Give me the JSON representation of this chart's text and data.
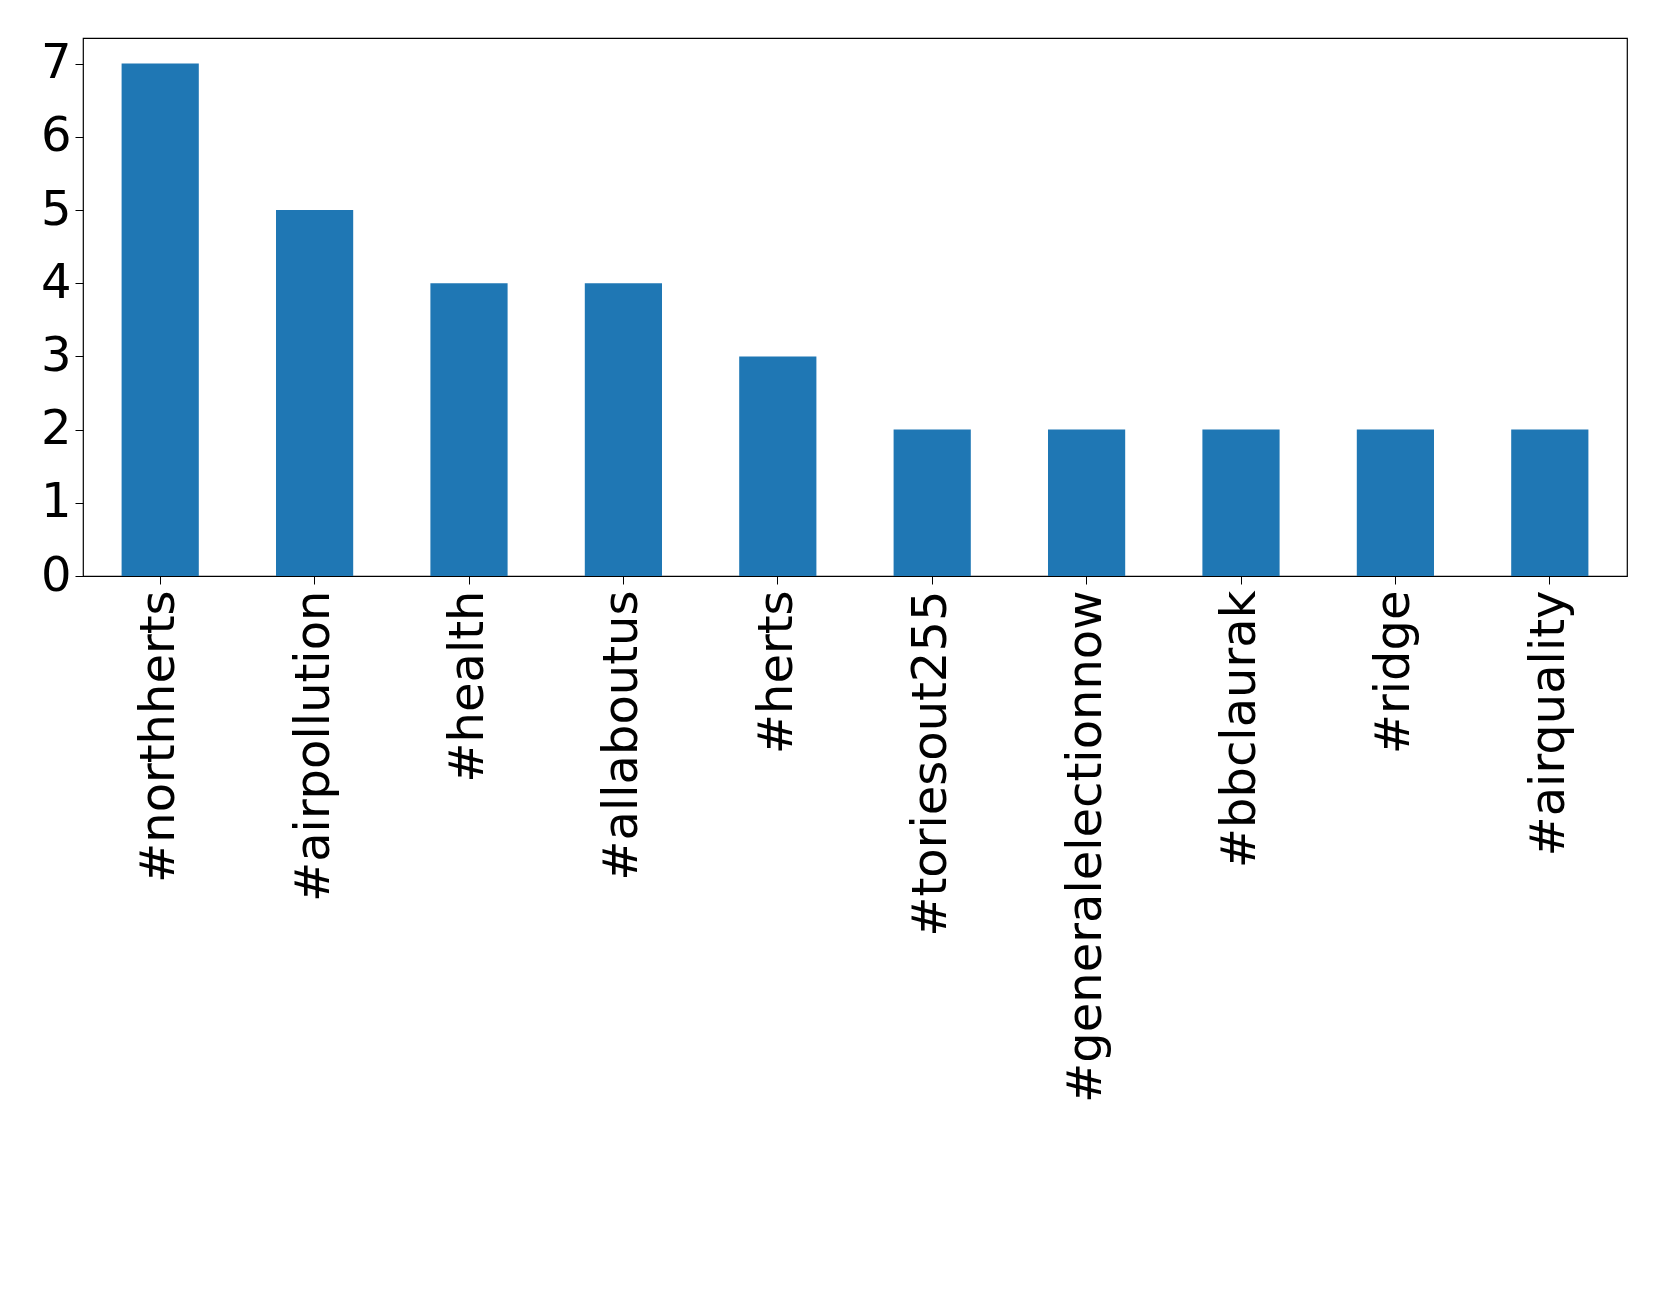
{
  "chart_data": {
    "type": "bar",
    "categories": [
      "#northherts",
      "#airpollution",
      "#health",
      "#allaboutus",
      "#herts",
      "#toriesout255",
      "#generalelectionnow",
      "#bbclaurak",
      "#ridge",
      "#airquality"
    ],
    "values": [
      7,
      5,
      4,
      4,
      3,
      2,
      2,
      2,
      2,
      2
    ],
    "color": "#1f77b4",
    "ylim": [
      0,
      7.35
    ],
    "yticks": [
      0,
      1,
      2,
      3,
      4,
      5,
      6,
      7
    ],
    "grid": false
  }
}
